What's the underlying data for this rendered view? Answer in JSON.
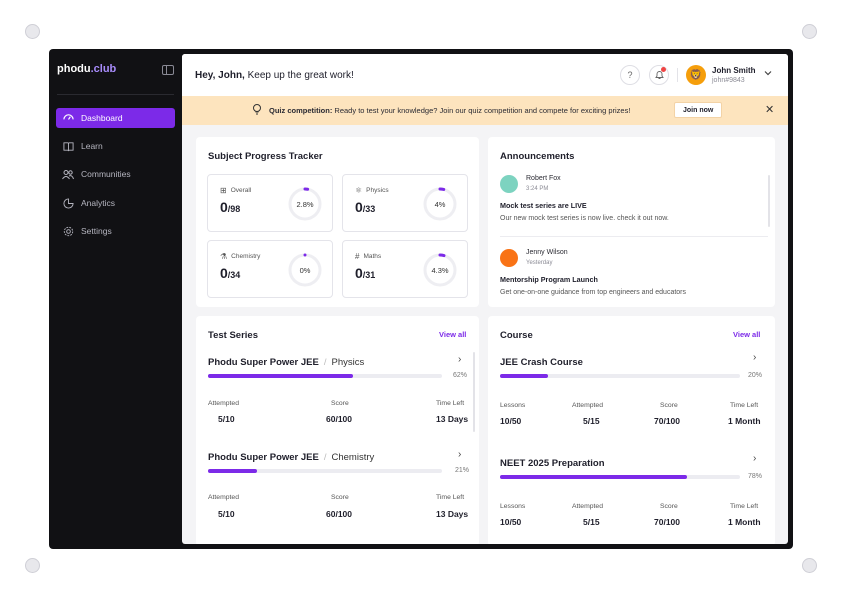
{
  "sidebar": {
    "logo_main": "phodu",
    "logo_accent": ".club",
    "items": [
      {
        "label": "Dashboard",
        "icon": "dashboard-icon",
        "active": true
      },
      {
        "label": "Learn",
        "icon": "book-icon"
      },
      {
        "label": "Communities",
        "icon": "users-icon"
      },
      {
        "label": "Analytics",
        "icon": "pie-chart-icon"
      },
      {
        "label": "Settings",
        "icon": "gear-icon"
      }
    ]
  },
  "header": {
    "greeting_bold": "Hey, John,",
    "greeting_rest": " Keep up the great work!",
    "user_name": "John Smith",
    "user_id": "john#9843"
  },
  "banner": {
    "title": "Quiz competition:",
    "text": " Ready to test your knowledge? Join our quiz competition and compete for exciting prizes!",
    "button": "Join now"
  },
  "progress": {
    "title": "Subject Progress Tracker",
    "items": [
      {
        "label": "Overall",
        "value": "0",
        "total": "/98",
        "pct": "2.8%",
        "fraction": 0.028
      },
      {
        "label": "Physics",
        "value": "0",
        "total": "/33",
        "pct": "4%",
        "fraction": 0.04
      },
      {
        "label": "Chemistry",
        "value": "0",
        "total": "/34",
        "pct": "0%",
        "fraction": 0.0
      },
      {
        "label": "Maths",
        "value": "0",
        "total": "/31",
        "pct": "4.3%",
        "fraction": 0.043
      }
    ]
  },
  "announcements": {
    "title": "Announcements",
    "items": [
      {
        "name": "Robert Fox",
        "time": "3:24 PM",
        "heading": "Mock test series are LIVE",
        "body": "Our new mock test series is now live. check it out now."
      },
      {
        "name": "Jenny Wilson",
        "time": "Yesterday",
        "heading": "Mentorship Program Launch",
        "body": "Get one-on-one guidance from top engineers and educators"
      }
    ]
  },
  "test_series": {
    "title": "Test Series",
    "view_all": "View all",
    "labels": {
      "attempted": "Attempted",
      "score": "Score",
      "time_left": "Time Left"
    },
    "items": [
      {
        "name": "Phodu Super Power JEE",
        "subject": "Physics",
        "pct": "62%",
        "fraction": 0.62,
        "attempted": "5/10",
        "score": "60/100",
        "time_left": "13 Days"
      },
      {
        "name": "Phodu Super Power JEE",
        "subject": "Chemistry",
        "pct": "21%",
        "fraction": 0.21,
        "attempted": "5/10",
        "score": "60/100",
        "time_left": "13 Days"
      }
    ]
  },
  "course": {
    "title": "Course",
    "view_all": "View all",
    "labels": {
      "lessons": "Lessons",
      "attempted": "Attempted",
      "score": "Score",
      "time_left": "Time Left"
    },
    "items": [
      {
        "name": "JEE Crash Course",
        "pct": "20%",
        "fraction": 0.2,
        "lessons": "10/50",
        "attempted": "5/15",
        "score": "70/100",
        "time_left": "1 Month"
      },
      {
        "name": "NEET 2025 Preparation",
        "pct": "78%",
        "fraction": 0.78,
        "lessons": "10/50",
        "attempted": "5/15",
        "score": "70/100",
        "time_left": "1 Month"
      }
    ]
  },
  "colors": {
    "accent": "#7c2ae8",
    "banner": "#fde4be",
    "sidebar": "#111114"
  }
}
